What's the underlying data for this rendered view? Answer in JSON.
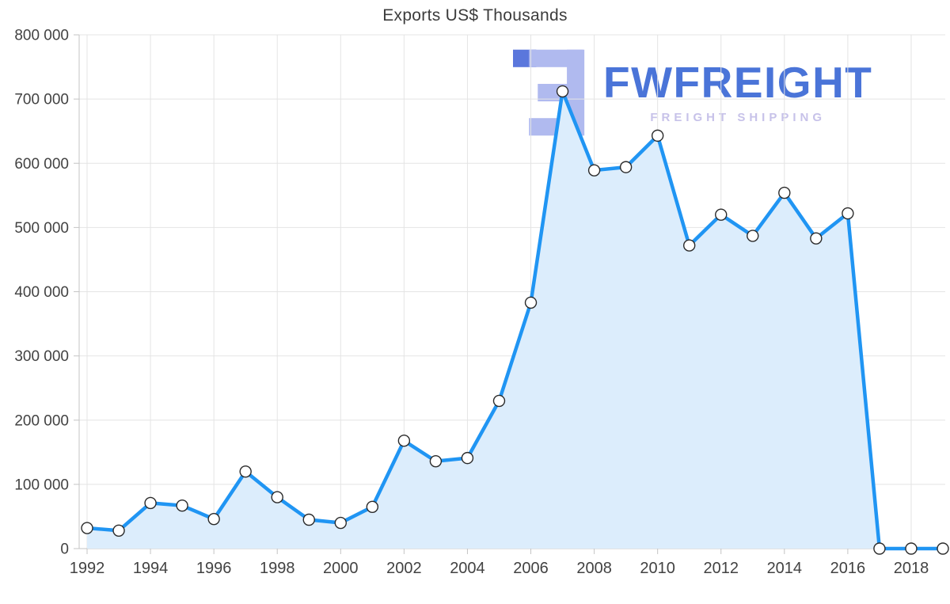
{
  "watermark": {
    "brand": "FWFREIGHT",
    "tagline": "FREIGHT SHIPPING"
  },
  "chart_data": {
    "type": "line",
    "title": "Exports US$ Thousands",
    "x": [
      1992,
      1993,
      1994,
      1995,
      1996,
      1997,
      1998,
      1999,
      2000,
      2001,
      2002,
      2003,
      2004,
      2005,
      2006,
      2007,
      2008,
      2009,
      2010,
      2011,
      2012,
      2013,
      2014,
      2015,
      2016,
      2017,
      2018,
      2019
    ],
    "series": [
      {
        "name": "Exports US$ Thousands",
        "values": [
          32000,
          28000,
          71000,
          67000,
          46000,
          120000,
          80000,
          45000,
          40000,
          65000,
          168000,
          136000,
          141000,
          230000,
          383000,
          712000,
          589000,
          594000,
          643000,
          472000,
          520000,
          487000,
          554000,
          483000,
          522000,
          0,
          0,
          0
        ]
      }
    ],
    "xtick_labels": [
      1992,
      1994,
      1996,
      1998,
      2000,
      2002,
      2004,
      2006,
      2008,
      2010,
      2012,
      2014,
      2016,
      2018
    ],
    "ylim": [
      0,
      800000
    ],
    "ytick_step": 100000,
    "grid": true,
    "legend": "none",
    "marker": "circle",
    "colors": {
      "line": "#2095f3",
      "fill": "#dcedfc",
      "marker_fill": "#ffffff",
      "marker_stroke": "#2a2a2a",
      "grid": "#e4e4e4",
      "axis": "#c4c4c4",
      "text": "#424242",
      "logo_light": "#b0baef",
      "logo_dark": "#5b77dc"
    }
  }
}
